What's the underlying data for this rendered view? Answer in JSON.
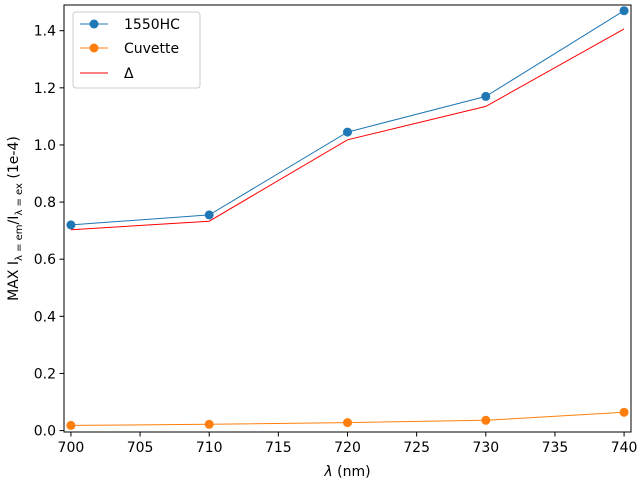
{
  "chart_data": {
    "type": "line",
    "x": [
      700,
      710,
      720,
      730,
      740
    ],
    "xlim": [
      699.5,
      740.5
    ],
    "ylim": [
      -0.005,
      1.49
    ],
    "xticks": [
      700,
      705,
      710,
      715,
      720,
      725,
      730,
      735,
      740
    ],
    "yticks": [
      0.0,
      0.2,
      0.4,
      0.6,
      0.8,
      1.0,
      1.2,
      1.4
    ],
    "xlabel_symbol": "λ",
    "xlabel_unit": " (nm)",
    "ylabel_prefix": "MAX I",
    "ylabel_sub1": "λ = em",
    "ylabel_mid": "/I",
    "ylabel_sub2": "λ = ex",
    "ylabel_suffix": " (1e-4)",
    "grid": false,
    "legend_position": "top-left",
    "series": [
      {
        "name": "1550HC",
        "color": "#1f77b4",
        "marker": "circle",
        "values": [
          0.72,
          0.755,
          1.045,
          1.17,
          1.47
        ]
      },
      {
        "name": "Cuvette",
        "color": "#ff7f0e",
        "marker": "circle",
        "values": [
          0.018,
          0.022,
          0.028,
          0.036,
          0.064
        ]
      },
      {
        "name": "Δ",
        "color": "#ff0000",
        "marker": "none",
        "values": [
          0.703,
          0.733,
          1.018,
          1.135,
          1.406
        ]
      }
    ]
  }
}
